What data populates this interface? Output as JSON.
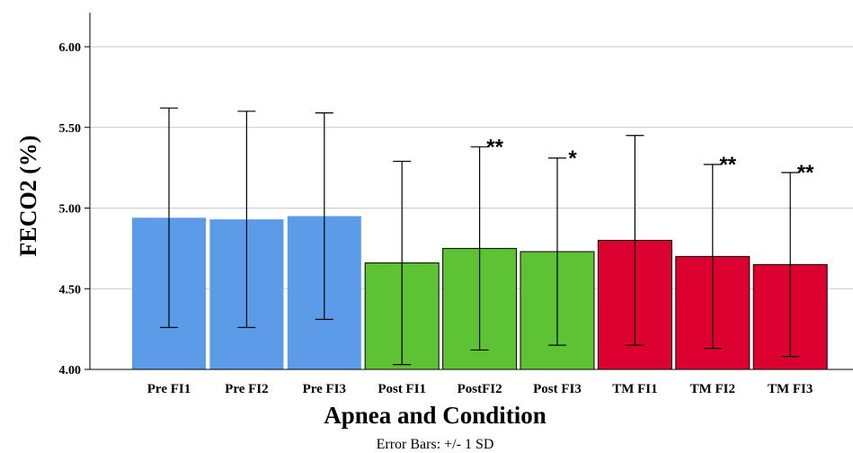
{
  "chart_data": {
    "type": "bar",
    "xlabel": "Apnea and Condition",
    "ylabel": "FECO2 (%)",
    "ylim": [
      4.0,
      6.2
    ],
    "yticks": [
      "4.00",
      "4.50",
      "5.00",
      "5.50",
      "6.00"
    ],
    "ytick_values": [
      4.0,
      4.5,
      5.0,
      5.5,
      6.0
    ],
    "grid": true,
    "footnote": "Error Bars: +/- 1 SD",
    "categories": [
      "Pre FI1",
      "Pre FI2",
      "Pre FI3",
      "Post FI1",
      "PostFI2",
      "Post FI3",
      "TM FI1",
      "TM FI2",
      "TM FI3"
    ],
    "values": [
      4.94,
      4.93,
      4.95,
      4.66,
      4.75,
      4.73,
      4.8,
      4.7,
      4.65
    ],
    "error_sd": [
      0.68,
      0.67,
      0.64,
      0.63,
      0.63,
      0.58,
      0.65,
      0.57,
      0.57
    ],
    "significance": [
      "",
      "",
      "",
      "",
      "**",
      "*",
      "",
      "**",
      "**"
    ],
    "group_colors": [
      "#5b9be8",
      "#5b9be8",
      "#5b9be8",
      "#5dc234",
      "#5dc234",
      "#5dc234",
      "#dc0030",
      "#dc0030",
      "#dc0030"
    ],
    "bar_outline": [
      "none",
      "none",
      "none",
      "#000000",
      "#000000",
      "#000000",
      "#000000",
      "#000000",
      "#000000"
    ]
  }
}
